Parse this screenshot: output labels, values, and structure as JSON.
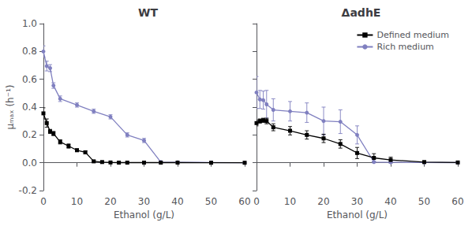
{
  "chart_data": [
    {
      "type": "line",
      "title": "WT",
      "xlabel": "Ethanol (g/L)",
      "ylabel": "μₘₐₓ (h⁻¹)",
      "xlim": [
        0,
        60
      ],
      "xticks": [
        0,
        10,
        20,
        30,
        40,
        50,
        60
      ],
      "ylim": [
        -0.2,
        1.0
      ],
      "yticks": [
        -0.2,
        {
          "value": 0.0,
          "label": "0.0"
        },
        0.2,
        0.4,
        0.6,
        0.8,
        {
          "value": 1.0,
          "label": "1.0"
        }
      ],
      "grid": false,
      "series": [
        {
          "name": "Rich medium",
          "color": "#8080c0",
          "marker": "circle",
          "x": [
            0,
            1,
            2,
            3,
            5,
            10,
            15,
            20,
            25,
            30,
            35,
            40,
            50,
            60
          ],
          "values": [
            0.8,
            0.695,
            0.68,
            0.555,
            0.46,
            0.415,
            0.37,
            0.33,
            0.2,
            0.16,
            0.005,
            0.003,
            0.002,
            0.0
          ],
          "yerr": [
            0.04,
            0.035,
            0.025,
            0.02,
            0.02,
            0.015,
            0.015,
            0.015,
            0.015,
            0.015,
            0.005,
            0.003,
            0.002,
            0.0
          ]
        },
        {
          "name": "Defined medium",
          "color": "#000000",
          "marker": "square",
          "x": [
            0,
            1,
            2,
            3,
            5,
            7.5,
            10,
            12.5,
            15,
            17.5,
            20,
            22.5,
            25,
            30,
            35,
            40,
            50,
            60
          ],
          "values": [
            0.355,
            0.285,
            0.225,
            0.21,
            0.15,
            0.12,
            0.09,
            0.075,
            0.01,
            0.005,
            0.002,
            0.001,
            0.001,
            0.001,
            0.001,
            0.001,
            0.0,
            0.0
          ],
          "yerr": [
            0.04,
            0.03,
            0.015,
            0.015,
            0.015,
            0.015,
            0.01,
            0.01,
            0.005,
            0.005,
            0.002,
            0.001,
            0.001,
            0.001,
            0.001,
            0.001,
            0.0,
            0.0
          ]
        }
      ]
    },
    {
      "type": "line",
      "title": "ΔadhE",
      "xlabel": "Ethanol (g/L)",
      "xlim": [
        0,
        60
      ],
      "xticks": [
        0,
        10,
        20,
        30,
        40,
        50,
        60
      ],
      "ylim": [
        -0.2,
        1.0
      ],
      "yticks": [
        -0.2,
        {
          "value": 0.0,
          "label": "0.0"
        },
        0.2,
        0.4,
        0.6,
        0.8,
        {
          "value": 1.0,
          "label": "1.0"
        }
      ],
      "grid": false,
      "tick_labels": "x",
      "legend": "upper right",
      "series": [
        {
          "name": "Rich medium",
          "color": "#8080c0",
          "marker": "circle",
          "x": [
            0,
            1,
            2,
            3,
            5,
            10,
            15,
            20,
            25,
            30,
            35,
            40,
            50,
            60
          ],
          "values": [
            0.505,
            0.455,
            0.45,
            0.42,
            0.38,
            0.37,
            0.36,
            0.3,
            0.295,
            0.2,
            0.005,
            0.003,
            0.002,
            0.001
          ],
          "yerr": [
            0.115,
            0.065,
            0.065,
            0.1,
            0.08,
            0.07,
            0.07,
            0.1,
            0.085,
            0.065,
            0.005,
            0.005,
            0.003,
            0.001
          ]
        },
        {
          "name": "Defined medium",
          "color": "#000000",
          "marker": "square",
          "x": [
            0,
            1,
            2,
            3,
            5,
            10,
            15,
            20,
            25,
            30,
            35,
            40,
            50,
            60
          ],
          "values": [
            0.285,
            0.3,
            0.305,
            0.3,
            0.255,
            0.23,
            0.2,
            0.175,
            0.135,
            0.07,
            0.035,
            0.02,
            0.005,
            0.002
          ],
          "yerr": [
            0.02,
            0.015,
            0.015,
            0.02,
            0.025,
            0.03,
            0.03,
            0.03,
            0.03,
            0.04,
            0.03,
            0.02,
            0.005,
            0.002
          ]
        }
      ]
    }
  ]
}
